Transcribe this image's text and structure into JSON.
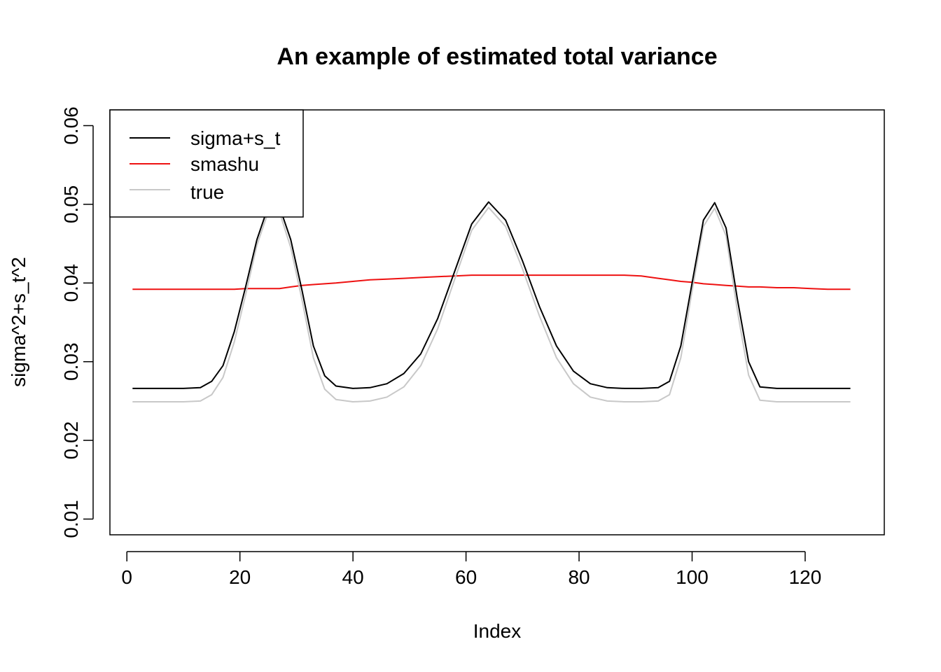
{
  "chart_data": {
    "type": "line",
    "title": "An example of estimated total variance",
    "xlabel": "Index",
    "ylabel": "sigma^2+s_t^2",
    "xlim": [
      -3,
      134
    ],
    "ylim": [
      0.008,
      0.062
    ],
    "x_ticks": [
      0,
      20,
      40,
      60,
      80,
      100,
      120
    ],
    "x_tick_labels": [
      "0",
      "20",
      "40",
      "60",
      "80",
      "100",
      "120"
    ],
    "y_ticks": [
      0.01,
      0.02,
      0.03,
      0.04,
      0.05,
      0.06
    ],
    "y_tick_labels": [
      "0.01",
      "0.02",
      "0.03",
      "0.04",
      "0.05",
      "0.06"
    ],
    "legend_position": "top-left",
    "x": [
      1,
      4,
      7,
      10,
      13,
      15,
      17,
      19,
      21,
      23,
      25,
      27,
      29,
      31,
      33,
      35,
      37,
      40,
      43,
      46,
      49,
      52,
      55,
      58,
      61,
      64,
      67,
      70,
      73,
      76,
      79,
      82,
      85,
      88,
      91,
      94,
      96,
      98,
      100,
      102,
      104,
      106,
      108,
      110,
      112,
      115,
      118,
      121,
      124,
      128
    ],
    "series": [
      {
        "name": "sigma+s_t",
        "color": "#000000",
        "values": [
          0.0266,
          0.0266,
          0.0266,
          0.0266,
          0.0267,
          0.0275,
          0.0295,
          0.0338,
          0.0395,
          0.0455,
          0.0497,
          0.0497,
          0.0455,
          0.039,
          0.032,
          0.0282,
          0.0269,
          0.0266,
          0.0267,
          0.0272,
          0.0285,
          0.031,
          0.0355,
          0.0415,
          0.0475,
          0.0503,
          0.048,
          0.0428,
          0.037,
          0.032,
          0.0288,
          0.0272,
          0.0267,
          0.0266,
          0.0266,
          0.0267,
          0.0275,
          0.032,
          0.04,
          0.048,
          0.0502,
          0.047,
          0.038,
          0.03,
          0.0268,
          0.0266,
          0.0266,
          0.0266,
          0.0266,
          0.0266
        ]
      },
      {
        "name": "smashu",
        "color": "#ee1111",
        "values": [
          0.0392,
          0.0392,
          0.0392,
          0.0392,
          0.0392,
          0.0392,
          0.0392,
          0.0392,
          0.0393,
          0.0393,
          0.0393,
          0.0393,
          0.0395,
          0.0397,
          0.0398,
          0.0399,
          0.04,
          0.0402,
          0.0404,
          0.0405,
          0.0406,
          0.0407,
          0.0408,
          0.0409,
          0.041,
          0.041,
          0.041,
          0.041,
          0.041,
          0.041,
          0.041,
          0.041,
          0.041,
          0.041,
          0.0409,
          0.0406,
          0.0404,
          0.0402,
          0.0401,
          0.0399,
          0.0398,
          0.0397,
          0.0396,
          0.0395,
          0.0395,
          0.0394,
          0.0394,
          0.0393,
          0.0392,
          0.0392
        ]
      },
      {
        "name": "true",
        "color": "#c8c8c8",
        "values": [
          0.0249,
          0.0249,
          0.0249,
          0.0249,
          0.025,
          0.0258,
          0.028,
          0.0325,
          0.0385,
          0.0448,
          0.049,
          0.049,
          0.0445,
          0.0378,
          0.0305,
          0.0265,
          0.0252,
          0.0249,
          0.025,
          0.0255,
          0.0268,
          0.0295,
          0.0342,
          0.0405,
          0.0467,
          0.0496,
          0.0472,
          0.0418,
          0.0358,
          0.0305,
          0.0272,
          0.0255,
          0.025,
          0.0249,
          0.0249,
          0.025,
          0.0258,
          0.0305,
          0.039,
          0.0472,
          0.0495,
          0.046,
          0.0365,
          0.0283,
          0.0251,
          0.0249,
          0.0249,
          0.0249,
          0.0249,
          0.0249
        ]
      }
    ]
  }
}
